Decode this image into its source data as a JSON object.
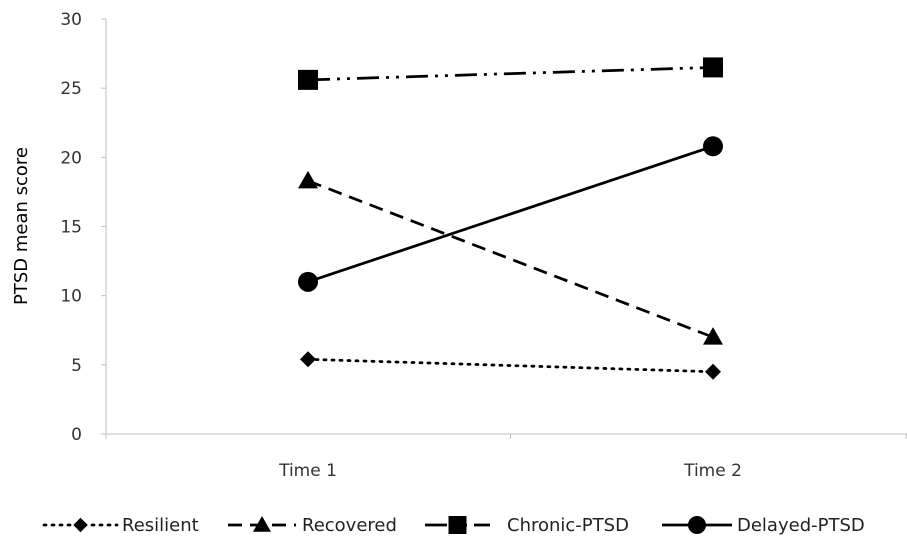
{
  "chart_data": {
    "type": "line",
    "title": "",
    "xlabel": "",
    "ylabel": "PTSD mean score",
    "ylim": [
      0,
      30
    ],
    "yticks": [
      0,
      5,
      10,
      15,
      20,
      25,
      30
    ],
    "categories": [
      "Time 1",
      "Time 2"
    ],
    "grid": false,
    "legend_position": "bottom",
    "series": [
      {
        "name": "Resilient",
        "values": [
          5.4,
          4.5
        ],
        "marker": "diamond",
        "line_style": "dotted",
        "color": "#000000"
      },
      {
        "name": "Recovered",
        "values": [
          18.3,
          7.0
        ],
        "marker": "triangle",
        "line_style": "dashed",
        "color": "#000000"
      },
      {
        "name": "Chronic-PTSD",
        "values": [
          25.6,
          26.5
        ],
        "marker": "square",
        "line_style": "dash-dot-dot",
        "color": "#000000"
      },
      {
        "name": "Delayed-PTSD",
        "values": [
          11.0,
          20.8
        ],
        "marker": "circle",
        "line_style": "solid",
        "color": "#000000"
      }
    ]
  }
}
